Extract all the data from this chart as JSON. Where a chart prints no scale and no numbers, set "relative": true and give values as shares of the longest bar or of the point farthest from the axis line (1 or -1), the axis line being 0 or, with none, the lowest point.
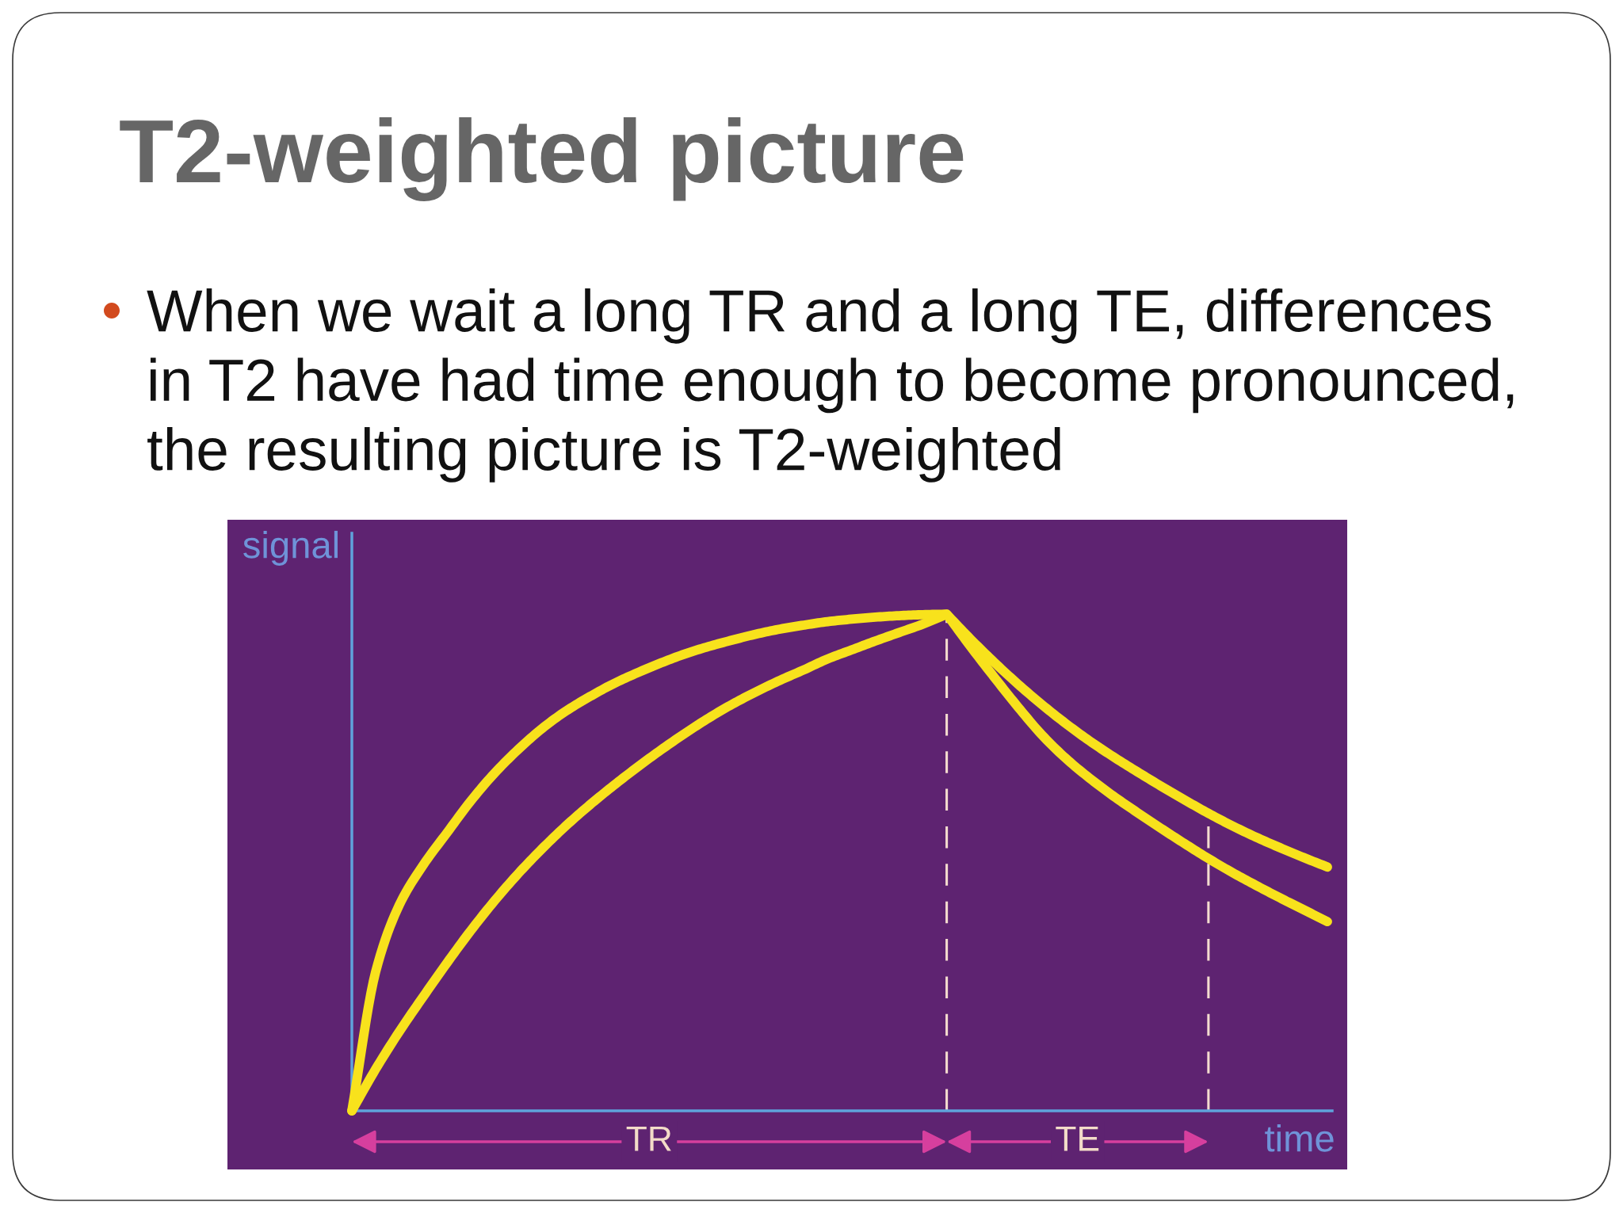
{
  "chart_data": {
    "type": "line",
    "title": "T2-weighted picture",
    "subtitle": "When we wait a long TR and a long TE, differences in T2 have had time enough to become pronounced, the resulting picture is T2-weighted",
    "annotations": [
      "TR",
      "TE"
    ],
    "xlabel": "time",
    "ylabel": "signal",
    "relative": true,
    "categories": [
      null,
      null,
      null,
      null,
      null,
      null,
      null,
      null,
      null,
      null,
      null,
      null,
      null,
      null,
      null,
      null,
      null,
      null,
      null,
      null,
      null,
      null,
      null,
      null,
      null,
      null,
      null,
      null,
      null,
      null,
      null,
      null,
      null,
      null,
      null,
      null,
      null,
      null,
      null,
      null,
      null,
      null
    ],
    "series": [
      {
        "color": "#f8e21c",
        "values": [
          0,
          0.28,
          0.415,
          0.495,
          0.56,
          0.624,
          0.68,
          0.728,
          0.77,
          0.805,
          0.834,
          0.86,
          0.882,
          0.902,
          0.92,
          0.935,
          0.948,
          0.96,
          0.97,
          0.978,
          0.985,
          0.99,
          0.994,
          0.997,
          0.999,
          1,
          0.935,
          0.873,
          0.813,
          0.757,
          0.71,
          0.67,
          0.634,
          0.601,
          0.569,
          0.538,
          0.508,
          0.48,
          0.454,
          0.429,
          0.405,
          0.381
        ]
      },
      {
        "color": "#f8e21c",
        "values": [
          0,
          0.084,
          0.16,
          0.23,
          0.298,
          0.363,
          0.423,
          0.478,
          0.528,
          0.574,
          0.616,
          0.655,
          0.692,
          0.727,
          0.76,
          0.791,
          0.819,
          0.844,
          0.867,
          0.888,
          0.91,
          0.928,
          0.946,
          0.963,
          0.98,
          1,
          0.95,
          0.903,
          0.859,
          0.818,
          0.78,
          0.745,
          0.713,
          0.683,
          0.654,
          0.626,
          0.599,
          0.574,
          0.551,
          0.53,
          0.51,
          0.491
        ]
      }
    ]
  }
}
